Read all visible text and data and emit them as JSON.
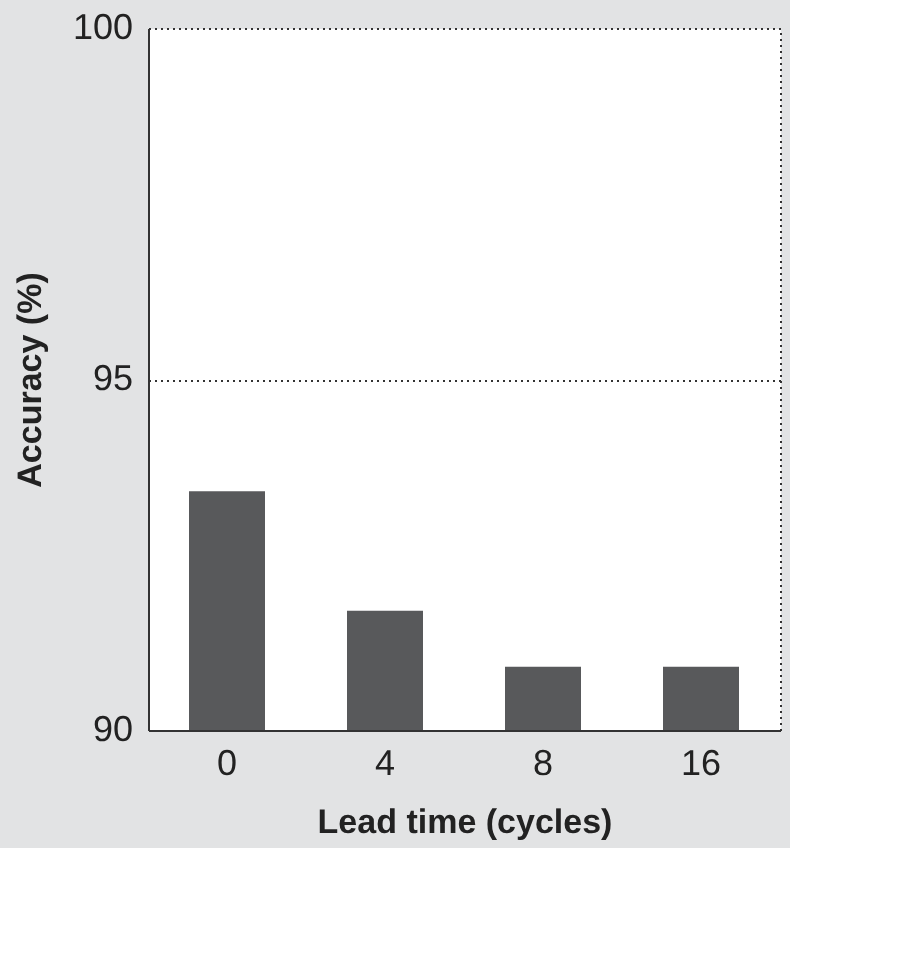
{
  "chart_data": {
    "type": "bar",
    "xlabel": "Lead time (cycles)",
    "ylabel": "Accuracy (%)",
    "categories": [
      "0",
      "4",
      "8",
      "16"
    ],
    "values": [
      93.4,
      91.7,
      90.9,
      90.9
    ],
    "color": "#58595b",
    "ylim": [
      90,
      100
    ],
    "yticks": [
      90,
      95,
      100
    ],
    "grid": "y",
    "line_style": "dotted"
  }
}
